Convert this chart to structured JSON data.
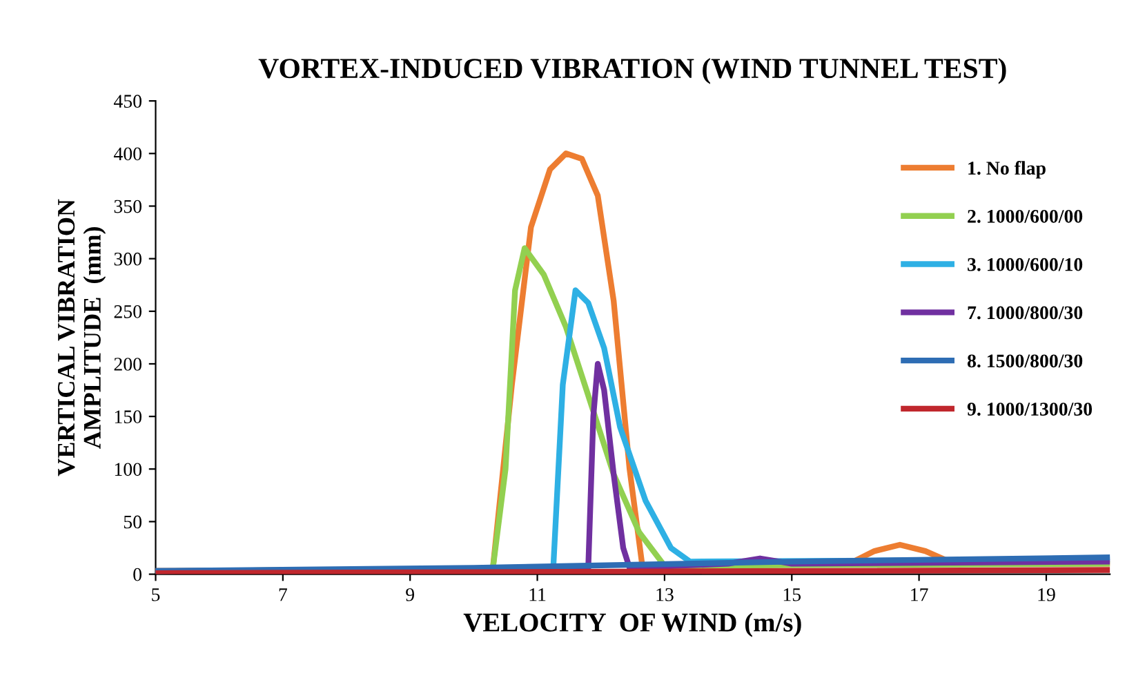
{
  "chart_data": {
    "type": "line",
    "title": "VORTEX-INDUCED VIBRATION (WIND TUNNEL TEST)",
    "xlabel": "VELOCITY  OF WIND (m/s)",
    "ylabel": "VERTICAL VIBRATION\nAMPLITUDE  (mm)",
    "xlim": [
      5,
      20
    ],
    "xticks": [
      5,
      7,
      9,
      11,
      13,
      15,
      17,
      19
    ],
    "ylim": [
      0,
      450
    ],
    "yticks": [
      0,
      50,
      100,
      150,
      200,
      250,
      300,
      350,
      400,
      450
    ],
    "grid": false,
    "legend": "right",
    "marker": "none",
    "line_style": "solid",
    "series": [
      {
        "name": "1. No flap",
        "color": "#ed7d31",
        "x": [
          5,
          10.3,
          10.6,
          10.9,
          11.2,
          11.45,
          11.7,
          11.95,
          12.2,
          12.45,
          12.65,
          13,
          15.9,
          16.3,
          16.7,
          17.1,
          17.55,
          20
        ],
        "values": [
          3,
          5,
          180,
          330,
          385,
          400,
          395,
          360,
          260,
          100,
          8,
          7,
          10,
          22,
          28,
          22,
          10,
          10
        ]
      },
      {
        "name": "2. 1000/600/00",
        "color": "#92d050",
        "x": [
          5,
          10.3,
          10.5,
          10.65,
          10.8,
          11.1,
          11.45,
          11.8,
          12.2,
          12.6,
          13.0,
          20
        ],
        "values": [
          3,
          5,
          100,
          270,
          310,
          285,
          235,
          170,
          95,
          40,
          8,
          10
        ]
      },
      {
        "name": "3. 1000/600/10",
        "color": "#2eb0e4",
        "x": [
          11.25,
          11.4,
          11.6,
          11.8,
          12.05,
          12.3,
          12.7,
          13.1,
          13.4,
          20
        ],
        "values": [
          5,
          180,
          270,
          258,
          215,
          140,
          70,
          25,
          12,
          14
        ]
      },
      {
        "name": "7. 1000/800/30",
        "color": "#7030a0",
        "x": [
          5,
          11.8,
          11.88,
          11.95,
          12.05,
          12.2,
          12.35,
          12.45,
          14.0,
          14.5,
          15.0,
          20
        ],
        "values": [
          3,
          5,
          150,
          200,
          175,
          95,
          25,
          6,
          10,
          15,
          10,
          12
        ]
      },
      {
        "name": "8. 1500/800/30",
        "color": "#2e6db4",
        "x": [
          5,
          10,
          15,
          20
        ],
        "values": [
          3,
          6,
          12,
          16
        ]
      },
      {
        "name": "9. 1000/1300/30",
        "color": "#c0272d",
        "x": [
          5,
          10,
          15,
          20
        ],
        "values": [
          1,
          2,
          3,
          4
        ]
      }
    ]
  }
}
